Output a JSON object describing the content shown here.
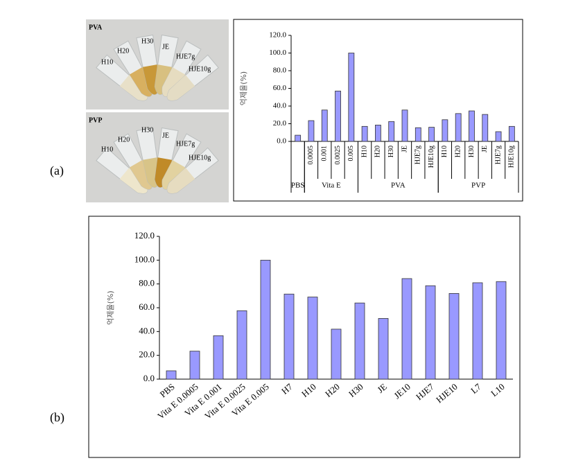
{
  "panel_labels": [
    "(a)",
    "(b)"
  ],
  "photos": [
    {
      "label": "PVA",
      "tubes": [
        "H10",
        "H20",
        "H30",
        "JE",
        "HJE7g",
        "HJE10g"
      ]
    },
    {
      "label": "PVP",
      "tubes": [
        "H10",
        "H20",
        "H30",
        "JE",
        "HJE7g",
        "HJE10g"
      ]
    }
  ],
  "chart_data": [
    {
      "type": "bar",
      "y_label": "억제율(%)",
      "color": "#9999ff",
      "ylim": [
        0,
        120
      ],
      "yticks": [
        {
          "value": 0,
          "label": "0.0"
        },
        {
          "value": 20,
          "label": "20.0"
        },
        {
          "value": 40,
          "label": "40.0"
        },
        {
          "value": 60,
          "label": "60.0"
        },
        {
          "value": 80,
          "label": "80.0"
        },
        {
          "value": 100,
          "label": "100.0"
        },
        {
          "value": 120,
          "label": "120.0"
        }
      ],
      "groups": [
        {
          "name": "PBS",
          "categories": [
            null
          ],
          "values": [
            7
          ]
        },
        {
          "name": "Vita E",
          "categories": [
            "0.0005",
            "0.001",
            "0.0025",
            "0.005"
          ],
          "values": [
            23.5,
            35.5,
            57,
            100
          ]
        },
        {
          "name": "PVA",
          "categories": [
            "H10",
            "H20",
            "H30",
            "JE",
            "HJE7g",
            "HJE10g"
          ],
          "values": [
            17,
            18.5,
            22.5,
            35.5,
            15.5,
            16
          ]
        },
        {
          "name": "PVP",
          "categories": [
            "H10",
            "H20",
            "H30",
            "JE",
            "HJE7g",
            "HJE10g"
          ],
          "values": [
            24.5,
            31.5,
            34.5,
            30.5,
            11,
            17
          ]
        }
      ]
    },
    {
      "type": "bar",
      "y_label": "억제율(%)",
      "color": "#9999ff",
      "ylim": [
        0,
        120
      ],
      "yticks": [
        {
          "value": 0,
          "label": "0.0"
        },
        {
          "value": 20,
          "label": "20.0"
        },
        {
          "value": 40,
          "label": "40.0"
        },
        {
          "value": 60,
          "label": "60.0"
        },
        {
          "value": 80,
          "label": "80.0"
        },
        {
          "value": 100,
          "label": "100.0"
        },
        {
          "value": 120,
          "label": "120.0"
        }
      ],
      "categories": [
        "PBS",
        "Vita E 0.0005",
        "Vita E 0.001",
        "Vita E 0.0025",
        "Vita E 0.005",
        "H7",
        "H10",
        "H20",
        "H30",
        "JE",
        "JE10",
        "HJE7",
        "HJE10",
        "L7",
        "L10"
      ],
      "values": [
        7,
        23.5,
        36.5,
        57.5,
        100,
        71.5,
        69,
        42,
        64,
        51,
        84.5,
        78.5,
        72,
        81,
        82
      ]
    }
  ]
}
